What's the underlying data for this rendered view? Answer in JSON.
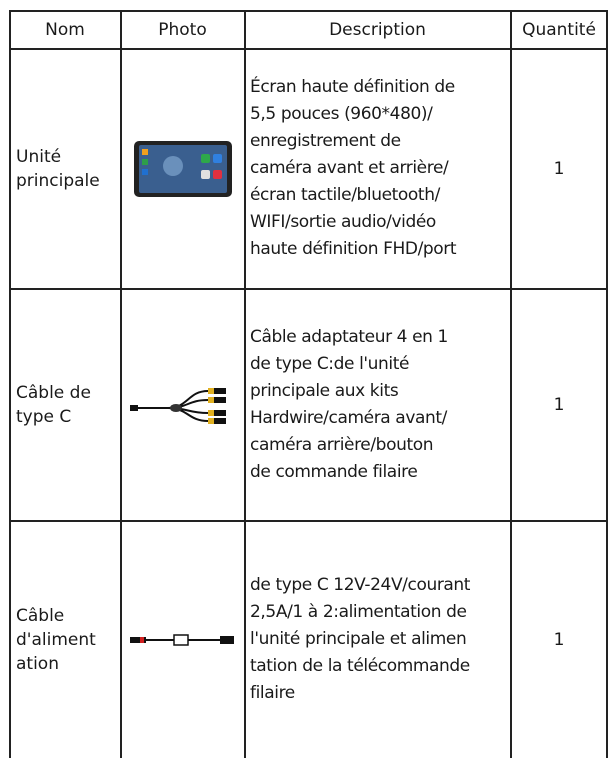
{
  "table": {
    "header": [
      "Nom",
      "Photo",
      "Description",
      "Quantité"
    ],
    "rows": [
      {
        "name": [
          "Unité",
          "principale"
        ],
        "description": [
          "Écran haute définition de",
          "5,5 pouces (960*480)/",
          "enregistrement de",
          "caméra avant et arrière/",
          "écran tactile/bluetooth/",
          "WIFI/sortie audio/vidéo",
          "haute définition FHD/port"
        ],
        "quantity": 1
      },
      {
        "name": [
          "Câble de",
          "type C"
        ],
        "description": [
          "Câble adaptateur 4 en 1",
          "de type C:de l'unité",
          "principale aux kits",
          "Hardwire/caméra avant/",
          "caméra arrière/bouton",
          "de commande filaire"
        ],
        "quantity": 1
      },
      {
        "name": [
          "Câble",
          "d'aliment",
          "ation"
        ],
        "description": [
          "de type C 12V-24V/courant",
          "2,5A/1 à 2:alimentation de",
          "l'unité principale et alimen",
          "tation de la télécommande",
          "filaire"
        ],
        "quantity": 1
      }
    ]
  }
}
